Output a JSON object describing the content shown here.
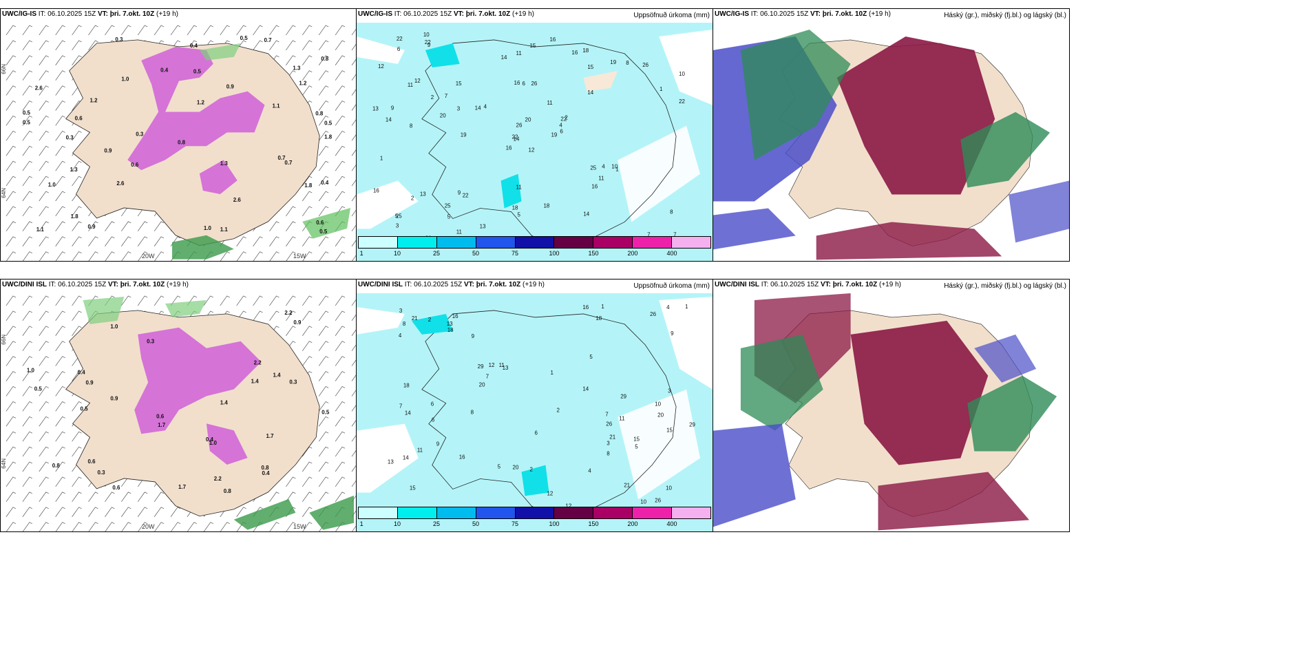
{
  "panels": [
    {
      "model": "UWC/IG-IS",
      "it_label": "IT:",
      "it_value": "06.10.2025 15Z",
      "vt_label": "VT:",
      "vt_value": "þri. 7.okt. 10Z",
      "lead": "(+19 h)",
      "right_title": ""
    },
    {
      "model": "UWC/IG-IS",
      "it_label": "IT:",
      "it_value": "06.10.2025 15Z",
      "vt_label": "VT:",
      "vt_value": "þri. 7.okt. 10Z",
      "lead": "(+19 h)",
      "right_title": "Uppsöfnuð úrkoma (mm)"
    },
    {
      "model": "UWC/IG-IS",
      "it_label": "IT:",
      "it_value": "06.10.2025 15Z",
      "vt_label": "VT:",
      "vt_value": "þri. 7.okt. 10Z",
      "lead": "(+19 h)",
      "right_title": "Háský (gr.), miðský (fj.bl.) og lágský (bl.)"
    },
    {
      "model": "UWC/DINI ISL",
      "it_label": "IT:",
      "it_value": "06.10.2025 15Z",
      "vt_label": "VT:",
      "vt_value": "þri. 7.okt. 10Z",
      "lead": "(+19 h)",
      "right_title": ""
    },
    {
      "model": "UWC/DINI ISL",
      "it_label": "IT:",
      "it_value": "06.10.2025 15Z",
      "vt_label": "VT:",
      "vt_value": "þri. 7.okt. 10Z",
      "lead": "(+19 h)",
      "right_title": "Uppsöfnuð úrkoma (mm)"
    },
    {
      "model": "UWC/DINI ISL",
      "it_label": "IT:",
      "it_value": "06.10.2025 15Z",
      "vt_label": "VT:",
      "vt_value": "þri. 7.okt. 10Z",
      "lead": "(+19 h)",
      "right_title": "Háský (gr.), miðský (fj.bl.) og lágský (bl.)"
    }
  ],
  "lon_labels": [
    "20W",
    "15W"
  ],
  "lat_labels": [
    "66N",
    "64N"
  ],
  "colorbar": {
    "ticks": [
      "1",
      "10",
      "25",
      "50",
      "75",
      "100",
      "150",
      "200",
      "400"
    ],
    "colors": [
      "#ccffff",
      "#00eeee",
      "#00bbee",
      "#2255ee",
      "#1111aa",
      "#660044",
      "#aa0066",
      "#ee22aa",
      "#f5b0f0"
    ]
  },
  "precip_values_top": [
    "12",
    "11",
    "14",
    "25",
    "22",
    "22",
    "18",
    "26",
    "15",
    "19",
    "9",
    "7",
    "8",
    "10",
    "16",
    "14",
    "20",
    "16",
    "11",
    "13",
    "4",
    "3",
    "5",
    "6",
    "2",
    "1"
  ],
  "precip_values_bottom": [
    "26",
    "20",
    "15",
    "16",
    "13",
    "21",
    "14",
    "18",
    "29",
    "12",
    "4",
    "7",
    "8",
    "10",
    "5",
    "3",
    "6",
    "2",
    "11",
    "9",
    "1"
  ],
  "snow_values_top": [
    "1.0",
    "0.8",
    "0.9",
    "0.5",
    "0.3",
    "0.4",
    "0.6",
    "0.5",
    "1.8",
    "1.3",
    "1.2",
    "0.7",
    "1.1",
    "2.6"
  ],
  "snow_values_bottom": [
    "0.8",
    "1.0",
    "0.6",
    "0.4",
    "1.4",
    "2.2",
    "0.5",
    "0.9",
    "1.7",
    "0.3"
  ]
}
